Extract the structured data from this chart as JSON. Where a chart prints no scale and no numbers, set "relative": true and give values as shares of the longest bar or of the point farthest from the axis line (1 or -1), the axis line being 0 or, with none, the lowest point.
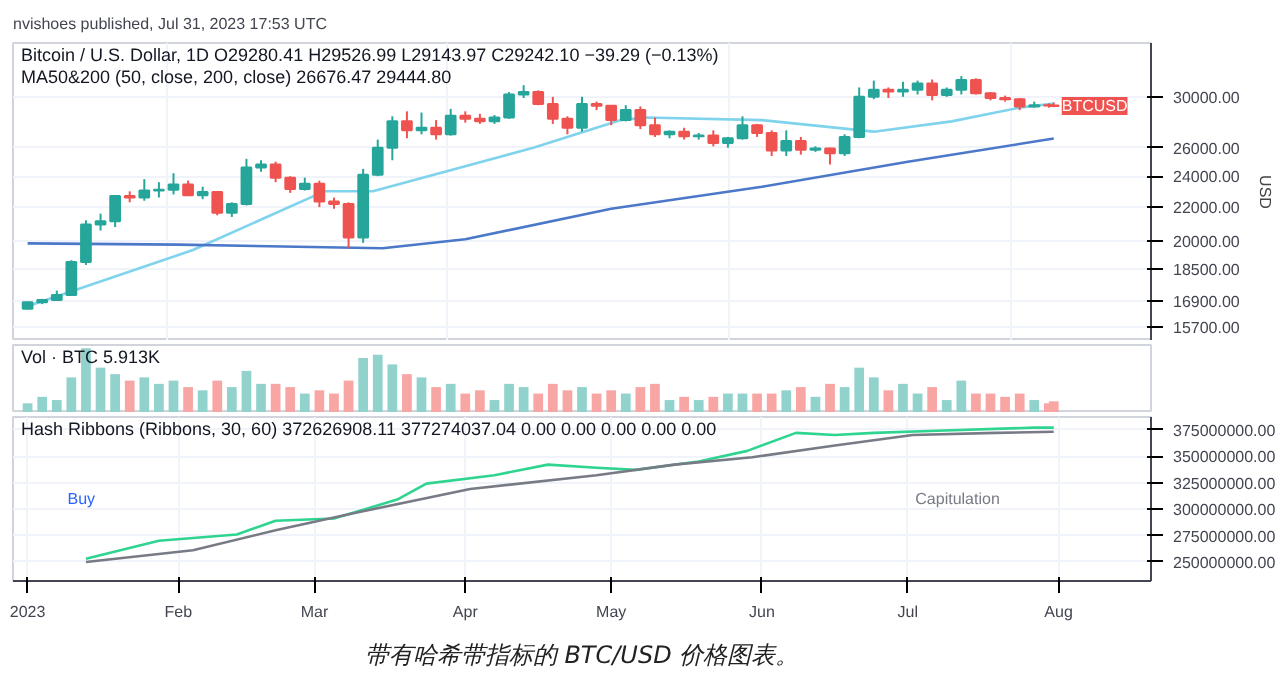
{
  "chart_data": [
    {
      "type": "candlestick",
      "title": "Bitcoin / U.S. Dollar, 1D",
      "subtitle": "O29280.41 H29526.99 L29143.97 C29242.10 −39.29 (−0.13%)",
      "ylabel": "USD",
      "x": [
        "2023-01-01",
        "2023-01-04",
        "2023-01-07",
        "2023-01-10",
        "2023-01-13",
        "2023-01-16",
        "2023-01-19",
        "2023-01-22",
        "2023-01-25",
        "2023-01-28",
        "2023-01-31",
        "2023-02-03",
        "2023-02-06",
        "2023-02-09",
        "2023-02-12",
        "2023-02-15",
        "2023-02-18",
        "2023-02-21",
        "2023-02-24",
        "2023-02-27",
        "2023-03-02",
        "2023-03-05",
        "2023-03-08",
        "2023-03-11",
        "2023-03-14",
        "2023-03-17",
        "2023-03-20",
        "2023-03-23",
        "2023-03-26",
        "2023-03-29",
        "2023-04-01",
        "2023-04-04",
        "2023-04-07",
        "2023-04-10",
        "2023-04-13",
        "2023-04-16",
        "2023-04-19",
        "2023-04-22",
        "2023-04-25",
        "2023-04-28",
        "2023-05-01",
        "2023-05-04",
        "2023-05-07",
        "2023-05-10",
        "2023-05-13",
        "2023-05-16",
        "2023-05-19",
        "2023-05-22",
        "2023-05-25",
        "2023-05-28",
        "2023-05-31",
        "2023-06-03",
        "2023-06-06",
        "2023-06-09",
        "2023-06-12",
        "2023-06-15",
        "2023-06-18",
        "2023-06-21",
        "2023-06-24",
        "2023-06-27",
        "2023-06-30",
        "2023-07-03",
        "2023-07-06",
        "2023-07-09",
        "2023-07-12",
        "2023-07-15",
        "2023-07-18",
        "2023-07-21",
        "2023-07-24",
        "2023-07-27",
        "2023-07-30",
        "2023-07-31"
      ],
      "ohlc": [
        [
          16530,
          16870,
          16500,
          16840
        ],
        [
          16840,
          17000,
          16750,
          16950
        ],
        [
          16950,
          17400,
          16900,
          17180
        ],
        [
          17180,
          18950,
          17150,
          18850
        ],
        [
          18850,
          21200,
          18700,
          20950
        ],
        [
          20950,
          21600,
          20600,
          21150
        ],
        [
          21150,
          22700,
          20800,
          22700
        ],
        [
          22700,
          23000,
          22300,
          22600
        ],
        [
          22600,
          23800,
          22400,
          23050
        ],
        [
          23050,
          23600,
          22600,
          23100
        ],
        [
          23100,
          24200,
          22800,
          23450
        ],
        [
          23450,
          23700,
          22700,
          22750
        ],
        [
          22750,
          23300,
          22500,
          22950
        ],
        [
          22950,
          23000,
          21500,
          21650
        ],
        [
          21650,
          22300,
          21400,
          22200
        ],
        [
          22200,
          25200,
          22100,
          24600
        ],
        [
          24600,
          25100,
          24300,
          24800
        ],
        [
          24800,
          25000,
          23600,
          23900
        ],
        [
          23900,
          24000,
          22900,
          23150
        ],
        [
          23150,
          23900,
          23050,
          23500
        ],
        [
          23500,
          23700,
          22000,
          22350
        ],
        [
          22350,
          22600,
          21900,
          22200
        ],
        [
          22200,
          22300,
          19600,
          20200
        ],
        [
          20200,
          24500,
          19900,
          24100
        ],
        [
          24100,
          26600,
          24000,
          26000
        ],
        [
          26000,
          28400,
          25100,
          28000
        ],
        [
          28000,
          28800,
          26700,
          27300
        ],
        [
          27300,
          28700,
          27000,
          27500
        ],
        [
          27500,
          28100,
          26600,
          27000
        ],
        [
          27000,
          29000,
          26900,
          28450
        ],
        [
          28450,
          28800,
          27900,
          28200
        ],
        [
          28200,
          28600,
          27800,
          28000
        ],
        [
          28000,
          28500,
          27800,
          28300
        ],
        [
          28300,
          30400,
          28200,
          30200
        ],
        [
          30200,
          31000,
          29900,
          30400
        ],
        [
          30400,
          30550,
          29300,
          29400
        ],
        [
          29400,
          30000,
          27800,
          28200
        ],
        [
          28200,
          28400,
          27000,
          27500
        ],
        [
          27500,
          30000,
          27200,
          29400
        ],
        [
          29400,
          29600,
          28900,
          29250
        ],
        [
          29250,
          29300,
          27700,
          28100
        ],
        [
          28100,
          29300,
          28000,
          28900
        ],
        [
          28900,
          29200,
          27400,
          27700
        ],
        [
          27700,
          28300,
          26800,
          27000
        ],
        [
          27000,
          27300,
          26700,
          27200
        ],
        [
          27200,
          27500,
          26600,
          26850
        ],
        [
          26850,
          27100,
          26600,
          26900
        ],
        [
          26900,
          27300,
          26100,
          26350
        ],
        [
          26350,
          26800,
          26000,
          26700
        ],
        [
          26700,
          28400,
          26600,
          27700
        ],
        [
          27700,
          27800,
          26800,
          27100
        ],
        [
          27100,
          27300,
          25400,
          25800
        ],
        [
          25800,
          27300,
          25400,
          26500
        ],
        [
          26500,
          26800,
          25500,
          25850
        ],
        [
          25850,
          26100,
          25700,
          25950
        ],
        [
          25950,
          26000,
          24800,
          25600
        ],
        [
          25600,
          27000,
          25400,
          26800
        ],
        [
          26800,
          30800,
          26700,
          30000
        ],
        [
          30000,
          31400,
          29800,
          30600
        ],
        [
          30600,
          30800,
          29900,
          30450
        ],
        [
          30450,
          31300,
          30000,
          30600
        ],
        [
          30600,
          31400,
          30200,
          31150
        ],
        [
          31150,
          31500,
          29700,
          30150
        ],
        [
          30150,
          30800,
          30000,
          30600
        ],
        [
          30600,
          31800,
          30200,
          31450
        ],
        [
          31450,
          31600,
          30200,
          30300
        ],
        [
          30300,
          30400,
          29700,
          29900
        ],
        [
          29900,
          30100,
          29600,
          29800
        ],
        [
          29800,
          29900,
          28900,
          29200
        ],
        [
          29200,
          29600,
          29100,
          29300
        ],
        [
          29300,
          29450,
          29100,
          29280
        ],
        [
          29280.41,
          29526.99,
          29143.97,
          29242.1
        ]
      ],
      "colors": [
        "#26a69a",
        "#26a69a",
        "#26a69a",
        "#26a69a",
        "#26a69a",
        "#26a69a",
        "#26a69a",
        "#ef5350",
        "#26a69a",
        "#26a69a",
        "#26a69a",
        "#ef5350",
        "#26a69a",
        "#ef5350",
        "#26a69a",
        "#26a69a",
        "#26a69a",
        "#ef5350",
        "#ef5350",
        "#26a69a",
        "#ef5350",
        "#ef5350",
        "#ef5350",
        "#26a69a",
        "#26a69a",
        "#26a69a",
        "#ef5350",
        "#26a69a",
        "#ef5350",
        "#26a69a",
        "#ef5350",
        "#ef5350",
        "#26a69a",
        "#26a69a",
        "#26a69a",
        "#ef5350",
        "#ef5350",
        "#ef5350",
        "#26a69a",
        "#ef5350",
        "#ef5350",
        "#26a69a",
        "#ef5350",
        "#ef5350",
        "#26a69a",
        "#ef5350",
        "#26a69a",
        "#ef5350",
        "#26a69a",
        "#26a69a",
        "#ef5350",
        "#ef5350",
        "#26a69a",
        "#ef5350",
        "#26a69a",
        "#ef5350",
        "#26a69a",
        "#26a69a",
        "#26a69a",
        "#ef5350",
        "#26a69a",
        "#26a69a",
        "#ef5350",
        "#26a69a",
        "#26a69a",
        "#ef5350",
        "#ef5350",
        "#ef5350",
        "#ef5350",
        "#26a69a",
        "#ef5350",
        "#ef5350"
      ],
      "series": [
        {
          "type": "line",
          "color": "#7fd3ec",
          "x": [
            "2023-01-01",
            "2023-02-04",
            "2023-03-03",
            "2023-03-13",
            "2023-04-15",
            "2023-05-03",
            "2023-05-08",
            "2023-06-01",
            "2023-06-24",
            "2023-07-10",
            "2023-07-24",
            "2023-07-31"
          ],
          "values": [
            16650,
            19500,
            23000,
            23000,
            26000,
            28100,
            28300,
            28100,
            27200,
            28000,
            29100,
            29444.8
          ]
        },
        {
          "type": "line",
          "color": "#4b78c8",
          "x": [
            "2023-01-01",
            "2023-02-01",
            "2023-03-15",
            "2023-04-01",
            "2023-05-01",
            "2023-06-01",
            "2023-07-01",
            "2023-07-31"
          ],
          "values": [
            19870,
            19800,
            19600,
            20100,
            21900,
            23300,
            25000,
            26676.47
          ]
        }
      ],
      "xlim": [
        "2022-12-29",
        "2023-08-20"
      ],
      "ylim": [
        15100,
        34900
      ],
      "log": "y",
      "grid": true,
      "tick_labels": "y",
      "yticks": [
        {
          "value": 15700,
          "label": "15700.00"
        },
        {
          "value": 16900,
          "label": "16900.00"
        },
        {
          "value": 18500,
          "label": "18500.00"
        },
        {
          "value": 20000,
          "label": "20000.00"
        },
        {
          "value": 22000,
          "label": "22000.00"
        },
        {
          "value": 24000,
          "label": "24000.00"
        },
        {
          "value": 26000,
          "label": "26000.00"
        },
        {
          "value": 30000,
          "label": "30000.00"
        }
      ],
      "annotations": [
        "nvishoes published, Jul 31, 2023 17:53 UTC",
        "MA50&200 (50, close, 200, close) 26676.47 29444.80",
        {
          "text": "BTCUSD",
          "x": "2023-07-31",
          "y": 29242.1
        }
      ]
    },
    {
      "type": "bar",
      "title": "Vol · BTC 5.913K",
      "relative": true,
      "tick_labels": false,
      "xlim": [
        "2022-12-29",
        "2023-08-20"
      ],
      "x": [
        "2023-01-01",
        "2023-01-04",
        "2023-01-07",
        "2023-01-10",
        "2023-01-13",
        "2023-01-16",
        "2023-01-19",
        "2023-01-22",
        "2023-01-25",
        "2023-01-28",
        "2023-01-31",
        "2023-02-03",
        "2023-02-06",
        "2023-02-09",
        "2023-02-12",
        "2023-02-15",
        "2023-02-18",
        "2023-02-21",
        "2023-02-24",
        "2023-02-27",
        "2023-03-02",
        "2023-03-05",
        "2023-03-08",
        "2023-03-11",
        "2023-03-14",
        "2023-03-17",
        "2023-03-20",
        "2023-03-23",
        "2023-03-26",
        "2023-03-29",
        "2023-04-01",
        "2023-04-04",
        "2023-04-07",
        "2023-04-10",
        "2023-04-13",
        "2023-04-16",
        "2023-04-19",
        "2023-04-22",
        "2023-04-25",
        "2023-04-28",
        "2023-05-01",
        "2023-05-04",
        "2023-05-07",
        "2023-05-10",
        "2023-05-13",
        "2023-05-16",
        "2023-05-19",
        "2023-05-22",
        "2023-05-25",
        "2023-05-28",
        "2023-05-31",
        "2023-06-03",
        "2023-06-06",
        "2023-06-09",
        "2023-06-12",
        "2023-06-15",
        "2023-06-18",
        "2023-06-21",
        "2023-06-24",
        "2023-06-27",
        "2023-06-30",
        "2023-07-03",
        "2023-07-06",
        "2023-07-09",
        "2023-07-12",
        "2023-07-15",
        "2023-07-18",
        "2023-07-21",
        "2023-07-24",
        "2023-07-27",
        "2023-07-30",
        "2023-07-31"
      ],
      "values": [
        0.15,
        0.25,
        0.2,
        0.55,
        1.0,
        0.7,
        0.6,
        0.5,
        0.55,
        0.45,
        0.5,
        0.4,
        0.35,
        0.5,
        0.4,
        0.65,
        0.45,
        0.45,
        0.4,
        0.3,
        0.35,
        0.3,
        0.5,
        0.85,
        0.9,
        0.75,
        0.6,
        0.55,
        0.4,
        0.45,
        0.3,
        0.35,
        0.2,
        0.45,
        0.4,
        0.3,
        0.45,
        0.35,
        0.4,
        0.3,
        0.35,
        0.3,
        0.4,
        0.45,
        0.2,
        0.25,
        0.2,
        0.25,
        0.3,
        0.3,
        0.3,
        0.3,
        0.35,
        0.4,
        0.25,
        0.45,
        0.4,
        0.7,
        0.55,
        0.35,
        0.45,
        0.3,
        0.4,
        0.2,
        0.5,
        0.3,
        0.3,
        0.25,
        0.3,
        0.2,
        0.15,
        0.18
      ],
      "colors": [
        "#92d2cc",
        "#92d2cc",
        "#92d2cc",
        "#92d2cc",
        "#92d2cc",
        "#92d2cc",
        "#92d2cc",
        "#f7a6a4",
        "#92d2cc",
        "#92d2cc",
        "#92d2cc",
        "#f7a6a4",
        "#92d2cc",
        "#f7a6a4",
        "#92d2cc",
        "#92d2cc",
        "#92d2cc",
        "#f7a6a4",
        "#f7a6a4",
        "#92d2cc",
        "#f7a6a4",
        "#f7a6a4",
        "#f7a6a4",
        "#92d2cc",
        "#92d2cc",
        "#92d2cc",
        "#f7a6a4",
        "#92d2cc",
        "#f7a6a4",
        "#92d2cc",
        "#f7a6a4",
        "#f7a6a4",
        "#92d2cc",
        "#92d2cc",
        "#92d2cc",
        "#f7a6a4",
        "#f7a6a4",
        "#f7a6a4",
        "#92d2cc",
        "#f7a6a4",
        "#f7a6a4",
        "#92d2cc",
        "#f7a6a4",
        "#f7a6a4",
        "#92d2cc",
        "#f7a6a4",
        "#92d2cc",
        "#f7a6a4",
        "#92d2cc",
        "#92d2cc",
        "#f7a6a4",
        "#f7a6a4",
        "#92d2cc",
        "#f7a6a4",
        "#92d2cc",
        "#f7a6a4",
        "#92d2cc",
        "#92d2cc",
        "#92d2cc",
        "#f7a6a4",
        "#92d2cc",
        "#92d2cc",
        "#f7a6a4",
        "#92d2cc",
        "#92d2cc",
        "#f7a6a4",
        "#f7a6a4",
        "#f7a6a4",
        "#f7a6a4",
        "#92d2cc",
        "#f7a6a4",
        "#f7a6a4"
      ]
    },
    {
      "type": "line",
      "title": "Hash Ribbons (Ribbons, 30, 60) 372626908.11 377274037.04 0.00 0.00 0.00 0.00 0.00",
      "series": [
        {
          "color": "#2ed48f",
          "x": [
            "2023-01-13",
            "2023-01-28",
            "2023-02-13",
            "2023-02-21",
            "2023-03-05",
            "2023-03-18",
            "2023-03-24",
            "2023-04-07",
            "2023-04-18",
            "2023-04-28",
            "2023-05-06",
            "2023-05-19",
            "2023-05-29",
            "2023-06-08",
            "2023-06-16",
            "2023-06-24",
            "2023-07-07",
            "2023-07-27",
            "2023-07-31"
          ],
          "values": [
            253000000,
            270000000,
            276000000,
            289000000,
            291000000,
            309000000,
            324000000,
            332000000,
            342000000,
            339000000,
            337000000,
            345000000,
            355000000,
            372000000,
            370000000,
            372000000,
            374000000,
            377000000,
            377000000
          ]
        },
        {
          "color": "#787b86",
          "x": [
            "2023-01-13",
            "2023-02-04",
            "2023-02-21",
            "2023-03-09",
            "2023-04-02",
            "2023-04-28",
            "2023-05-14",
            "2023-05-30",
            "2023-06-16",
            "2023-07-02",
            "2023-07-19",
            "2023-07-31"
          ],
          "values": [
            250000000,
            261000000,
            280000000,
            296000000,
            319000000,
            332000000,
            342000000,
            349000000,
            360000000,
            370000000,
            372000000,
            373000000
          ]
        }
      ],
      "xlim": [
        "2022-12-29",
        "2023-08-20"
      ],
      "xticks": [
        {
          "value": "2023-01-01",
          "label": "2023"
        },
        {
          "value": "2023-02-01",
          "label": "Feb"
        },
        {
          "value": "2023-03-01",
          "label": "Mar"
        },
        {
          "value": "2023-04-01",
          "label": "Apr"
        },
        {
          "value": "2023-05-01",
          "label": "May"
        },
        {
          "value": "2023-06-01",
          "label": "Jun"
        },
        {
          "value": "2023-07-01",
          "label": "Jul"
        },
        {
          "value": "2023-08-01",
          "label": "Aug"
        }
      ],
      "ylim": [
        232000000,
        387000000
      ],
      "yticks": [
        {
          "value": 250000000,
          "label": "250000000.00"
        },
        {
          "value": 275000000,
          "label": "275000000.00"
        },
        {
          "value": 300000000,
          "label": "300000000.00"
        },
        {
          "value": 325000000,
          "label": "325000000.00"
        },
        {
          "value": 350000000,
          "label": "350000000.00"
        },
        {
          "value": 375000000,
          "label": "375000000.00"
        }
      ],
      "grid": true,
      "annotations": [
        "Buy",
        "Capitulation",
        "带有哈希带指标的 BTC/USD 价格图表。"
      ]
    }
  ]
}
